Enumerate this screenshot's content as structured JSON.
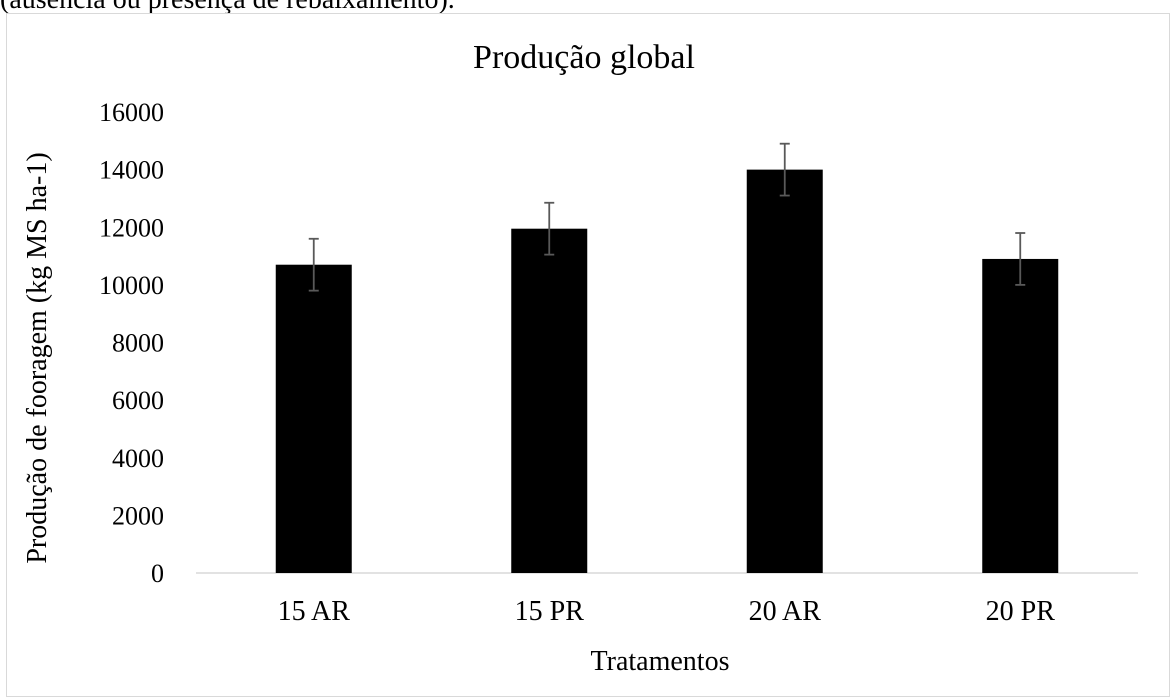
{
  "caption_fragment": "(ausência ou presença de rebaixamento).",
  "chart_data": {
    "type": "bar",
    "title": "Produção global",
    "xlabel": "Tratamentos",
    "ylabel": "Produção de fooragem (kg MS ha-1)",
    "categories": [
      "15 AR",
      "15 PR",
      "20 AR",
      "20 PR"
    ],
    "values": [
      10700,
      11950,
      14000,
      10900
    ],
    "error": [
      900,
      900,
      900,
      900
    ],
    "ylim": [
      0,
      16000
    ],
    "yticks": [
      "0",
      "2000",
      "4000",
      "6000",
      "8000",
      "10000",
      "12000",
      "14000",
      "16000"
    ],
    "grid": false,
    "legend": "none",
    "colors": {
      "bar": "#000000",
      "error_bar": "#595959",
      "axis": "#d9d9d9",
      "frame": "#d9d9d9"
    }
  }
}
